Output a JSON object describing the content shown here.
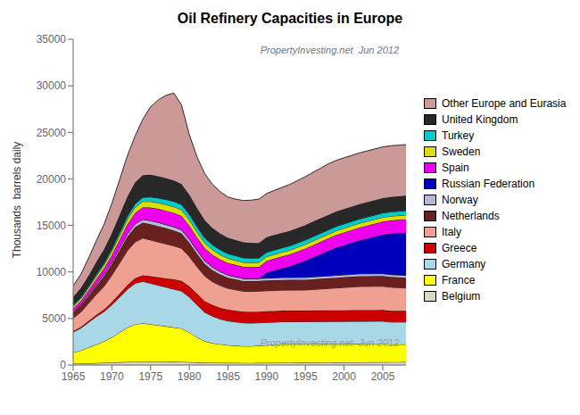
{
  "chart_data": {
    "type": "area",
    "title": "Oil Refinery Capacities in Europe",
    "ylabel": "Thousands  barrels daily",
    "annotations": [
      "PropertyInvesting.net  Jun 2012",
      "PropertyInvesting.net  Jun 2012"
    ],
    "x": [
      1965,
      1966,
      1967,
      1968,
      1969,
      1970,
      1971,
      1972,
      1973,
      1974,
      1975,
      1976,
      1977,
      1978,
      1979,
      1980,
      1981,
      1982,
      1983,
      1984,
      1985,
      1986,
      1987,
      1988,
      1989,
      1990,
      1991,
      1992,
      1993,
      1994,
      1995,
      1996,
      1997,
      1998,
      1999,
      2000,
      2001,
      2002,
      2003,
      2004,
      2005,
      2006,
      2007,
      2008
    ],
    "series": [
      {
        "name": "Belgium",
        "color": "#d8d8c0",
        "values": [
          150,
          170,
          190,
          210,
          240,
          270,
          300,
          330,
          370,
          390,
          380,
          370,
          360,
          350,
          340,
          310,
          280,
          260,
          250,
          240,
          235,
          230,
          225,
          225,
          230,
          235,
          240,
          245,
          250,
          255,
          260,
          265,
          270,
          275,
          280,
          285,
          290,
          295,
          300,
          305,
          310,
          315,
          320,
          325
        ]
      },
      {
        "name": "France",
        "color": "#ffff00",
        "values": [
          1200,
          1400,
          1700,
          2000,
          2300,
          2700,
          3200,
          3700,
          4000,
          4100,
          4000,
          3900,
          3800,
          3700,
          3600,
          3200,
          2700,
          2300,
          2100,
          2000,
          1900,
          1850,
          1800,
          1800,
          1850,
          1900,
          1950,
          2000,
          2000,
          2000,
          2000,
          2000,
          2000,
          2000,
          2000,
          2000,
          2000,
          2000,
          2000,
          2000,
          2000,
          1900,
          1900,
          1900
        ]
      },
      {
        "name": "Germany",
        "color": "#a8d8e8",
        "values": [
          2200,
          2400,
          2700,
          3000,
          3200,
          3500,
          3800,
          4100,
          4400,
          4500,
          4400,
          4300,
          4200,
          4100,
          4000,
          3800,
          3500,
          3100,
          2900,
          2700,
          2600,
          2550,
          2500,
          2480,
          2460,
          2440,
          2420,
          2400,
          2400,
          2400,
          2400,
          2400,
          2400,
          2400,
          2400,
          2400,
          2400,
          2400,
          2400,
          2400,
          2400,
          2400,
          2400,
          2400
        ]
      },
      {
        "name": "Greece",
        "color": "#cc0000",
        "values": [
          100,
          120,
          150,
          180,
          220,
          280,
          360,
          450,
          550,
          650,
          750,
          850,
          950,
          1050,
          1100,
          1150,
          1180,
          1200,
          1200,
          1200,
          1200,
          1200,
          1200,
          1200,
          1200,
          1200,
          1200,
          1200,
          1200,
          1200,
          1200,
          1200,
          1200,
          1200,
          1200,
          1200,
          1200,
          1200,
          1200,
          1200,
          1200,
          1200,
          1200,
          1200
        ]
      },
      {
        "name": "Italy",
        "color": "#f0a090",
        "values": [
          1400,
          1600,
          1900,
          2200,
          2500,
          2900,
          3300,
          3700,
          3900,
          4000,
          3900,
          3800,
          3700,
          3600,
          3500,
          3200,
          2900,
          2700,
          2500,
          2400,
          2300,
          2250,
          2200,
          2200,
          2200,
          2200,
          2200,
          2200,
          2200,
          2200,
          2200,
          2250,
          2300,
          2350,
          2400,
          2450,
          2500,
          2550,
          2550,
          2550,
          2550,
          2550,
          2500,
          2450
        ]
      },
      {
        "name": "Netherlands",
        "color": "#6b2020",
        "values": [
          600,
          700,
          800,
          950,
          1100,
          1200,
          1350,
          1500,
          1600,
          1650,
          1700,
          1700,
          1680,
          1650,
          1600,
          1500,
          1400,
          1300,
          1250,
          1200,
          1150,
          1130,
          1100,
          1100,
          1100,
          1100,
          1100,
          1100,
          1100,
          1100,
          1100,
          1100,
          1100,
          1100,
          1100,
          1100,
          1100,
          1100,
          1100,
          1100,
          1100,
          1100,
          1100,
          1100
        ]
      },
      {
        "name": "Norway",
        "color": "#b8b8d8",
        "values": [
          100,
          120,
          140,
          160,
          190,
          220,
          260,
          300,
          340,
          370,
          390,
          400,
          405,
          410,
          400,
          380,
          360,
          340,
          320,
          300,
          285,
          275,
          265,
          260,
          255,
          250,
          250,
          250,
          250,
          250,
          250,
          250,
          250,
          250,
          250,
          250,
          250,
          250,
          250,
          250,
          250,
          250,
          250,
          250
        ]
      },
      {
        "name": "Russian Federation",
        "color": "#0000bb",
        "values": [
          0,
          0,
          0,
          0,
          0,
          0,
          0,
          0,
          0,
          0,
          0,
          0,
          0,
          0,
          0,
          0,
          0,
          0,
          0,
          0,
          0,
          0,
          0,
          0,
          0,
          600,
          800,
          1000,
          1200,
          1500,
          1800,
          2100,
          2400,
          2700,
          3000,
          3200,
          3400,
          3600,
          3800,
          4000,
          4200,
          4400,
          4500,
          4600
        ]
      },
      {
        "name": "Spain",
        "color": "#ee00ee",
        "values": [
          350,
          400,
          480,
          560,
          650,
          760,
          900,
          1050,
          1200,
          1300,
          1400,
          1450,
          1480,
          1500,
          1480,
          1450,
          1400,
          1350,
          1320,
          1300,
          1280,
          1270,
          1260,
          1260,
          1260,
          1260,
          1270,
          1280,
          1290,
          1300,
          1310,
          1320,
          1330,
          1340,
          1350,
          1360,
          1370,
          1380,
          1390,
          1400,
          1410,
          1420,
          1430,
          1440
        ]
      },
      {
        "name": "Sweden",
        "color": "#dddd00",
        "values": [
          200,
          230,
          260,
          300,
          350,
          400,
          460,
          520,
          580,
          620,
          650,
          660,
          660,
          660,
          650,
          620,
          590,
          560,
          540,
          520,
          505,
          495,
          485,
          480,
          475,
          470,
          465,
          460,
          460,
          460,
          460,
          460,
          460,
          460,
          460,
          460,
          460,
          460,
          460,
          460,
          460,
          460,
          460,
          460
        ]
      },
      {
        "name": "Turkey",
        "color": "#00cccc",
        "values": [
          100,
          120,
          140,
          170,
          200,
          240,
          280,
          330,
          380,
          430,
          480,
          510,
          540,
          560,
          570,
          570,
          560,
          545,
          530,
          515,
          500,
          490,
          480,
          470,
          465,
          460,
          460,
          460,
          460,
          460,
          460,
          460,
          460,
          460,
          460,
          460,
          460,
          460,
          460,
          460,
          460,
          460,
          460,
          460
        ]
      },
      {
        "name": "United Kingdom",
        "color": "#282828",
        "values": [
          900,
          1000,
          1150,
          1350,
          1500,
          1700,
          1900,
          2100,
          2300,
          2400,
          2400,
          2350,
          2300,
          2250,
          2200,
          2100,
          2000,
          1900,
          1800,
          1750,
          1700,
          1680,
          1660,
          1640,
          1630,
          1620,
          1610,
          1600,
          1600,
          1600,
          1600,
          1600,
          1600,
          1600,
          1600,
          1600,
          1600,
          1600,
          1600,
          1600,
          1600,
          1600,
          1600,
          1600
        ]
      },
      {
        "name": "Other Europe and Eurasia",
        "color": "#cc9999",
        "values": [
          1200,
          1500,
          1900,
          2300,
          2700,
          3200,
          3800,
          4400,
          5000,
          6000,
          7300,
          8200,
          8900,
          9400,
          8500,
          6500,
          5500,
          5000,
          4700,
          4500,
          4400,
          4400,
          4500,
          4600,
          4700,
          4700,
          4800,
          4900,
          5000,
          5100,
          5200,
          5300,
          5400,
          5500,
          5500,
          5500,
          5500,
          5500,
          5500,
          5500,
          5500,
          5500,
          5500,
          5500
        ]
      }
    ],
    "stacked": true,
    "xlim": [
      1965,
      2008
    ],
    "xticks": [
      1965,
      1970,
      1975,
      1980,
      1985,
      1990,
      1995,
      2000,
      2005
    ],
    "ylim": [
      0,
      35000
    ],
    "yticks": [
      0,
      5000,
      10000,
      15000,
      20000,
      25000,
      30000,
      35000
    ],
    "grid": false,
    "legend": "right"
  }
}
